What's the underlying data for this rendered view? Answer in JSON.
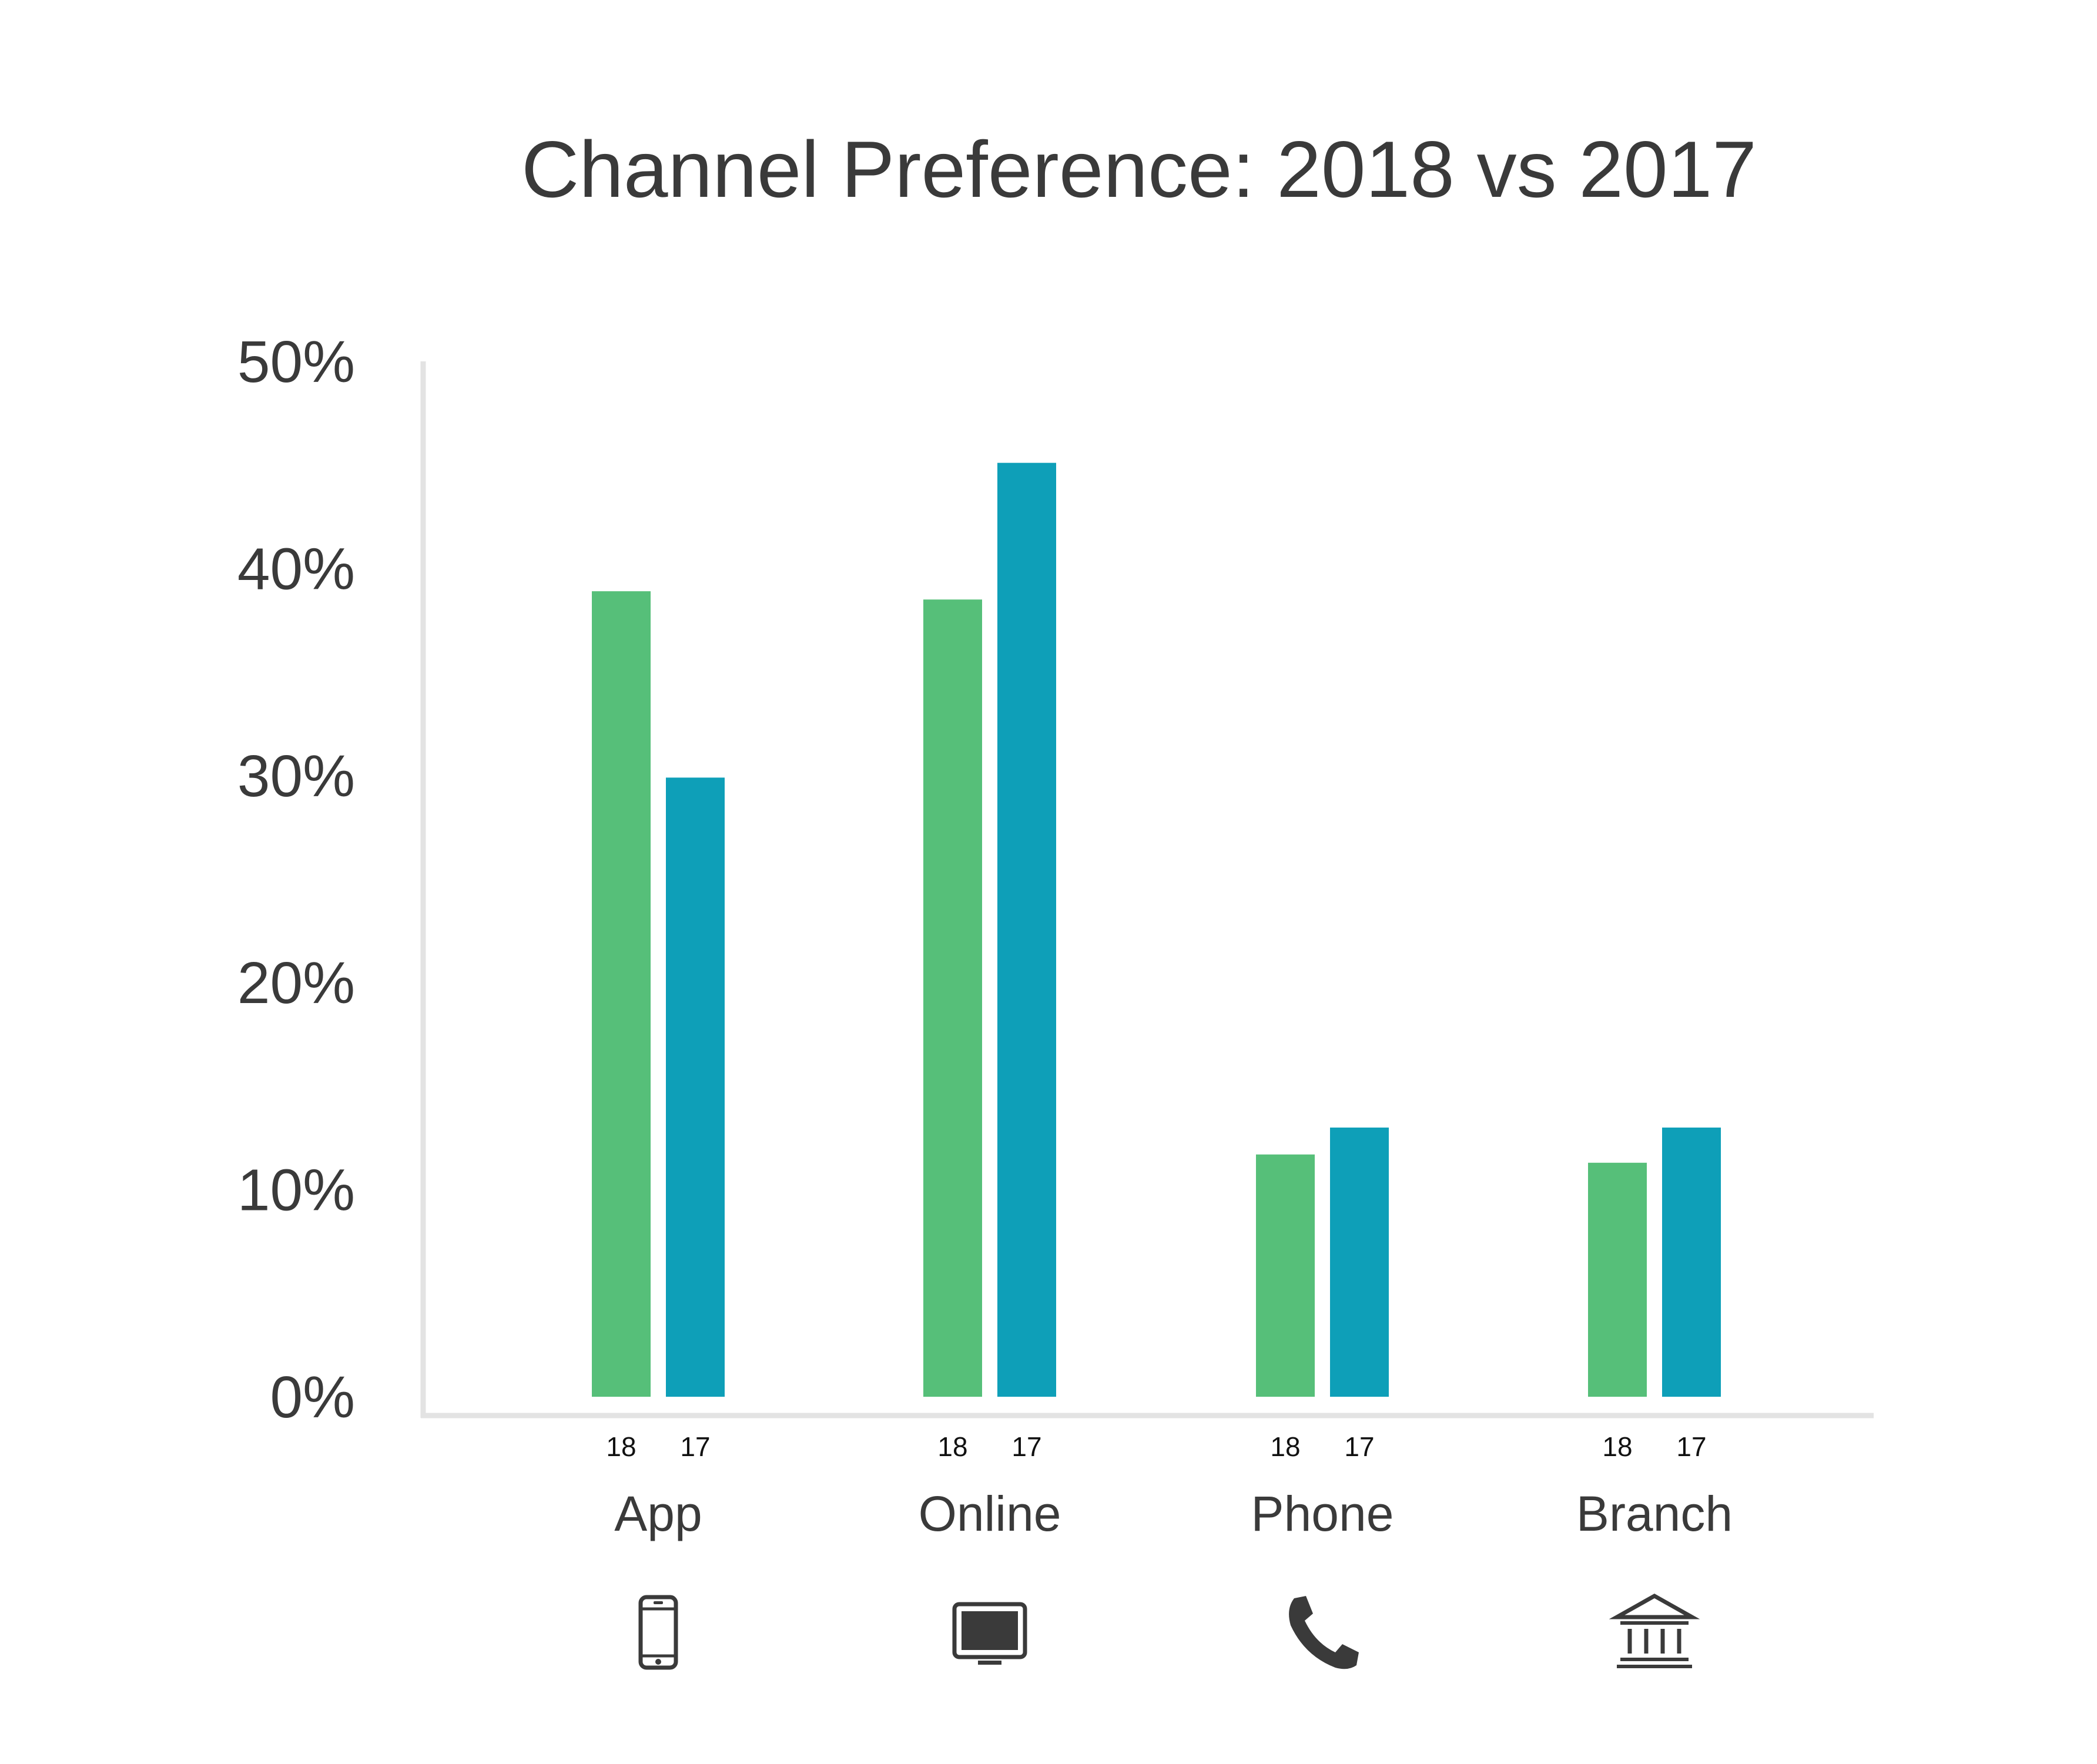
{
  "chart_data": {
    "type": "bar",
    "title": "Channel Preference: 2018 vs 2017",
    "categories": [
      "App",
      "Online",
      "Phone",
      "Branch"
    ],
    "series": [
      {
        "name": "18",
        "values": [
          38.9,
          38.5,
          11.7,
          11.3
        ]
      },
      {
        "name": "17",
        "values": [
          29.9,
          45.1,
          13.0,
          13.0
        ]
      }
    ],
    "ylim": [
      0,
      50
    ],
    "yticks": [
      "0%",
      "10%",
      "20%",
      "30%",
      "40%",
      "50%"
    ],
    "ytick_values": [
      0,
      10,
      20,
      30,
      40,
      50
    ],
    "category_icons": [
      "mobile-phone-icon",
      "monitor-icon",
      "telephone-handset-icon",
      "bank-building-icon"
    ],
    "grid": false,
    "colors": {
      "series_18": "#56bf79",
      "series_17": "#0e9fb8",
      "axis": "#e3e3e3",
      "text": "#3a3a3a",
      "icon": "#3a3a3a"
    }
  }
}
